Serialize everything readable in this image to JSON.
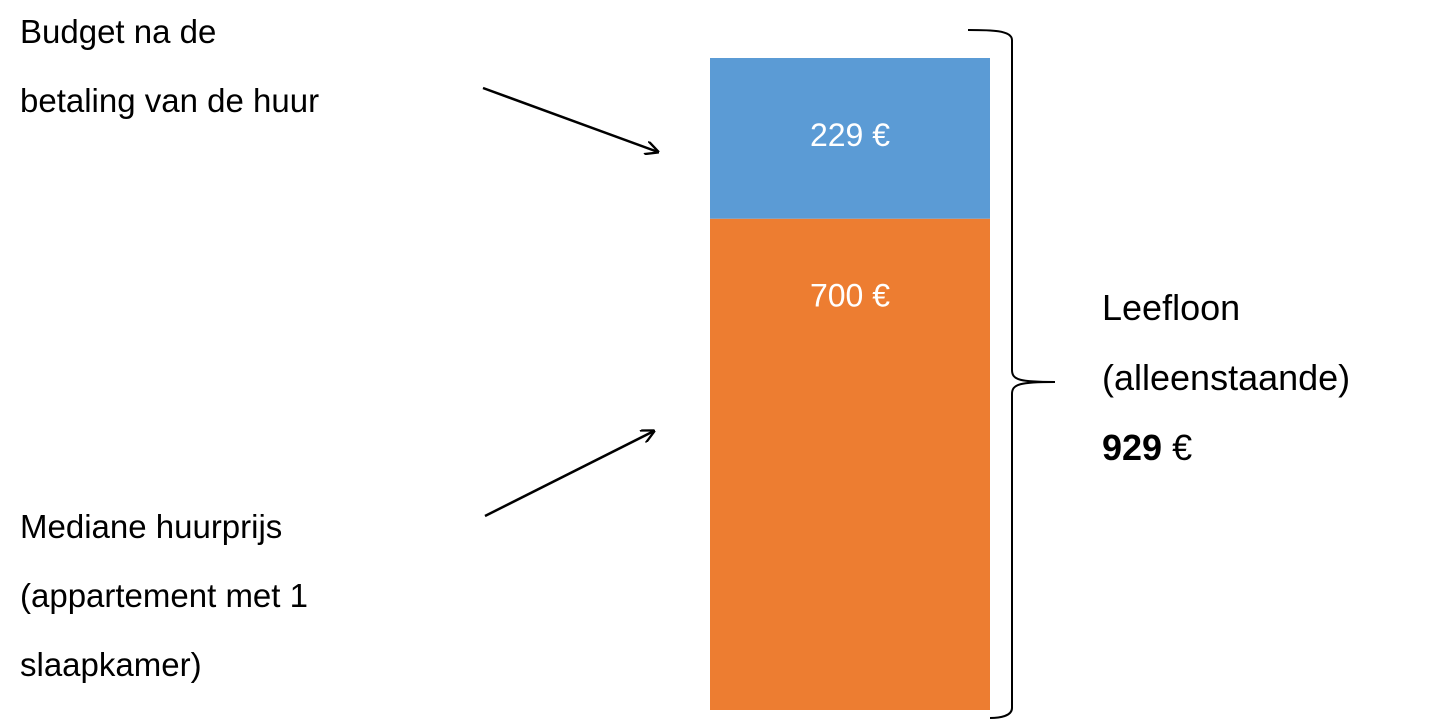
{
  "chart_data": {
    "type": "stacked_bar",
    "categories": [
      null
    ],
    "ylim": [
      0,
      929
    ],
    "series": [
      {
        "color": "#ed7d31",
        "values": [
          700
        ],
        "value_labels": [
          "700 €"
        ]
      },
      {
        "color": "#5b9bd5",
        "values": [
          229
        ],
        "value_labels": [
          "229 €"
        ]
      }
    ],
    "annotations": [
      {
        "lines": [
          "Budget na de",
          "betaling van de huur"
        ]
      },
      {
        "lines": [
          "Mediane huurprijs",
          "(appartement met 1",
          "slaapkamer)"
        ]
      }
    ],
    "total_annotation": {
      "lines": [
        "Leefloon",
        "(alleenstaande)"
      ],
      "total": 929,
      "unit": "€"
    }
  }
}
